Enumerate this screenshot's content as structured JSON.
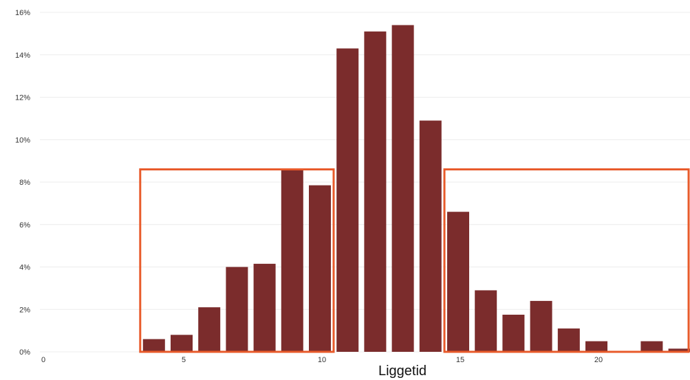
{
  "chart_data": {
    "type": "bar",
    "xlabel": "Liggetid",
    "ylabel": "",
    "x_ticks": [
      0,
      5,
      10,
      15,
      20
    ],
    "y_ticks": [
      "0%",
      "2%",
      "4%",
      "6%",
      "8%",
      "10%",
      "12%",
      "14%",
      "16%"
    ],
    "xlim": [
      0,
      23.5
    ],
    "ylim": [
      0,
      16
    ],
    "grid": true,
    "categories": [
      4,
      5,
      6,
      7,
      8,
      9,
      10,
      11,
      12,
      13,
      14,
      15,
      16,
      17,
      18,
      19,
      20,
      21,
      22,
      23
    ],
    "values": [
      0.6,
      0.8,
      2.1,
      4.0,
      4.15,
      8.6,
      7.85,
      14.3,
      15.1,
      15.4,
      10.9,
      6.6,
      2.9,
      1.75,
      2.4,
      1.1,
      0.5,
      0,
      0.5,
      0.15
    ],
    "bar_color": "#7b2c2c",
    "highlight_color": "#e85a2a",
    "highlight_ranges": [
      {
        "x_range": [
          4,
          10
        ],
        "y_top": 8.6
      },
      {
        "x_range": [
          15,
          23.5
        ],
        "y_top": 8.6
      }
    ]
  }
}
